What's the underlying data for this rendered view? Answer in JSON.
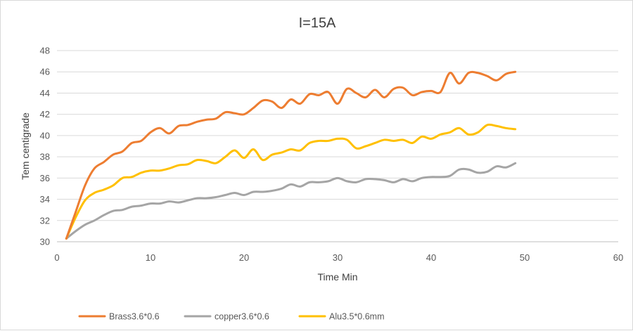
{
  "chart_data": {
    "type": "line",
    "title": "I=15A",
    "xlabel": "Time Min",
    "ylabel": "Tem centigrade",
    "xlim": [
      0,
      60
    ],
    "ylim": [
      30,
      48
    ],
    "xticks": [
      "0",
      "10",
      "20",
      "30",
      "40",
      "50",
      "60"
    ],
    "yticks": [
      "30",
      "32",
      "34",
      "36",
      "38",
      "40",
      "42",
      "44",
      "46",
      "48"
    ],
    "grid": "horizontal",
    "legend_position": "bottom",
    "x": [
      1,
      2,
      3,
      4,
      5,
      6,
      7,
      8,
      9,
      10,
      11,
      12,
      13,
      14,
      15,
      16,
      17,
      18,
      19,
      20,
      21,
      22,
      23,
      24,
      25,
      26,
      27,
      28,
      29,
      30,
      31,
      32,
      33,
      34,
      35,
      36,
      37,
      38,
      39,
      40,
      41,
      42,
      43,
      44,
      45,
      46,
      47,
      48,
      49
    ],
    "series": [
      {
        "name": "Brass3.6*0.6",
        "color": "#ED7D31",
        "values": [
          30.3,
          32.8,
          35.3,
          36.9,
          37.5,
          38.2,
          38.5,
          39.3,
          39.5,
          40.3,
          40.7,
          40.2,
          40.9,
          41.0,
          41.3,
          41.5,
          41.6,
          42.2,
          42.1,
          42.0,
          42.6,
          43.3,
          43.2,
          42.6,
          43.4,
          43.0,
          43.9,
          43.8,
          44.1,
          43.0,
          44.4,
          44.0,
          43.6,
          44.3,
          43.6,
          44.4,
          44.5,
          43.8,
          44.1,
          44.2,
          44.1,
          45.9,
          44.9,
          45.9,
          45.9,
          45.6,
          45.2,
          45.8,
          46.0
        ]
      },
      {
        "name": "copper3.6*0.6",
        "color": "#A5A5A5",
        "values": [
          30.3,
          31.0,
          31.6,
          32.0,
          32.5,
          32.9,
          33.0,
          33.3,
          33.4,
          33.6,
          33.6,
          33.8,
          33.7,
          33.9,
          34.1,
          34.1,
          34.2,
          34.4,
          34.6,
          34.4,
          34.7,
          34.7,
          34.8,
          35.0,
          35.4,
          35.2,
          35.6,
          35.6,
          35.7,
          36.0,
          35.7,
          35.6,
          35.9,
          35.9,
          35.8,
          35.6,
          35.9,
          35.7,
          36.0,
          36.1,
          36.1,
          36.2,
          36.8,
          36.8,
          36.5,
          36.6,
          37.1,
          37.0,
          37.4
        ]
      },
      {
        "name": "Alu3.5*0.6mm",
        "color": "#FFC000",
        "values": [
          30.3,
          32.3,
          33.9,
          34.6,
          34.9,
          35.3,
          36.0,
          36.1,
          36.5,
          36.7,
          36.7,
          36.9,
          37.2,
          37.3,
          37.7,
          37.6,
          37.4,
          38.0,
          38.6,
          37.9,
          38.7,
          37.7,
          38.2,
          38.4,
          38.7,
          38.6,
          39.3,
          39.5,
          39.5,
          39.7,
          39.6,
          38.8,
          39.0,
          39.3,
          39.6,
          39.5,
          39.6,
          39.3,
          39.9,
          39.7,
          40.1,
          40.3,
          40.7,
          40.1,
          40.3,
          41.0,
          40.9,
          40.7,
          40.6
        ]
      }
    ]
  }
}
